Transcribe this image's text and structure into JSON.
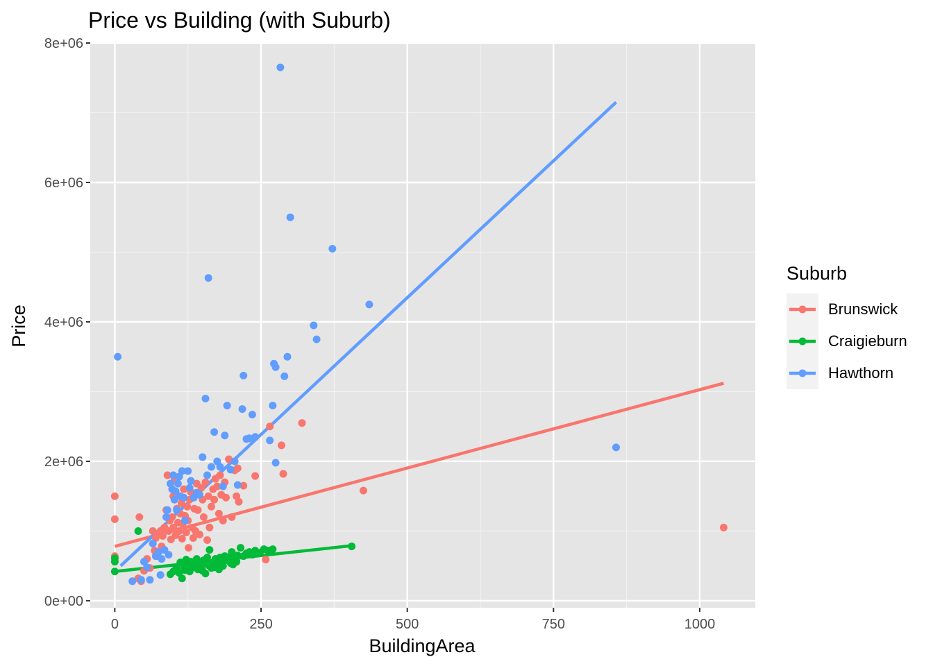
{
  "chart_data": {
    "type": "scatter",
    "title": "Price vs Building (with Suburb)",
    "xlabel": "BuildingArea",
    "ylabel": "Price",
    "xlim": [
      -42,
      1095
    ],
    "ylim": [
      -100000,
      8000000
    ],
    "x_ticks": [
      0,
      250,
      500,
      750,
      1000
    ],
    "x_tick_labels": [
      "0",
      "250",
      "500",
      "750",
      "1000"
    ],
    "y_ticks": [
      0,
      2000000,
      4000000,
      6000000,
      8000000
    ],
    "y_tick_labels": [
      "0e+00",
      "2e+06",
      "4e+06",
      "6e+06",
      "8e+06"
    ],
    "grid": true,
    "legend": {
      "title": "Suburb",
      "position": "right"
    },
    "background": "#e5e5e5",
    "series": [
      {
        "name": "Brunswick",
        "color": "#f8766d",
        "fit_line": [
          [
            0,
            780000
          ],
          [
            1041,
            3120000
          ]
        ],
        "points": [
          [
            0,
            1500000
          ],
          [
            0,
            1170000
          ],
          [
            0,
            640000
          ],
          [
            42,
            1200000
          ],
          [
            40,
            320000
          ],
          [
            45,
            280000
          ],
          [
            50,
            430000
          ],
          [
            55,
            600000
          ],
          [
            60,
            470000
          ],
          [
            65,
            1000000
          ],
          [
            68,
            720000
          ],
          [
            70,
            900000
          ],
          [
            72,
            640000
          ],
          [
            75,
            960000
          ],
          [
            78,
            1000000
          ],
          [
            80,
            780000
          ],
          [
            82,
            930000
          ],
          [
            85,
            1050000
          ],
          [
            88,
            1300000
          ],
          [
            90,
            1800000
          ],
          [
            92,
            1000000
          ],
          [
            94,
            1150000
          ],
          [
            96,
            880000
          ],
          [
            98,
            1200000
          ],
          [
            100,
            1050000
          ],
          [
            100,
            1500000
          ],
          [
            102,
            1750000
          ],
          [
            104,
            940000
          ],
          [
            106,
            1320000
          ],
          [
            108,
            1120000
          ],
          [
            110,
            1000000
          ],
          [
            112,
            1250000
          ],
          [
            114,
            1400000
          ],
          [
            115,
            890000
          ],
          [
            116,
            1100000
          ],
          [
            118,
            1600000
          ],
          [
            120,
            1220000
          ],
          [
            122,
            980000
          ],
          [
            124,
            1350000
          ],
          [
            125,
            1150000
          ],
          [
            126,
            760000
          ],
          [
            128,
            1450000
          ],
          [
            130,
            1560000
          ],
          [
            132,
            1050000
          ],
          [
            134,
            900000
          ],
          [
            136,
            1320000
          ],
          [
            138,
            1000000
          ],
          [
            140,
            1680000
          ],
          [
            142,
            1300000
          ],
          [
            145,
            950000
          ],
          [
            148,
            1620000
          ],
          [
            150,
            1450000
          ],
          [
            152,
            1200000
          ],
          [
            155,
            1700000
          ],
          [
            158,
            870000
          ],
          [
            160,
            1500000
          ],
          [
            162,
            1050000
          ],
          [
            165,
            1350000
          ],
          [
            168,
            1600000
          ],
          [
            170,
            1450000
          ],
          [
            172,
            1750000
          ],
          [
            175,
            1640000
          ],
          [
            178,
            1250000
          ],
          [
            180,
            1800000
          ],
          [
            182,
            1520000
          ],
          [
            185,
            1150000
          ],
          [
            188,
            1700000
          ],
          [
            190,
            1480000
          ],
          [
            195,
            2030000
          ],
          [
            200,
            1200000
          ],
          [
            205,
            1870000
          ],
          [
            208,
            1500000
          ],
          [
            210,
            1900000
          ],
          [
            212,
            1420000
          ],
          [
            220,
            1650000
          ],
          [
            240,
            1790000
          ],
          [
            258,
            590000
          ],
          [
            265,
            2500000
          ],
          [
            285,
            2230000
          ],
          [
            288,
            1820000
          ],
          [
            320,
            2550000
          ],
          [
            425,
            1580000
          ],
          [
            1041,
            1050000
          ]
        ]
      },
      {
        "name": "Craigieburn",
        "color": "#00ba38",
        "fit_line": [
          [
            0,
            420000
          ],
          [
            405,
            790000
          ]
        ],
        "points": [
          [
            0,
            420000
          ],
          [
            0,
            560000
          ],
          [
            0,
            610000
          ],
          [
            40,
            1000000
          ],
          [
            95,
            380000
          ],
          [
            100,
            420000
          ],
          [
            105,
            470000
          ],
          [
            110,
            400000
          ],
          [
            112,
            550000
          ],
          [
            115,
            320000
          ],
          [
            118,
            480000
          ],
          [
            120,
            440000
          ],
          [
            122,
            590000
          ],
          [
            125,
            510000
          ],
          [
            128,
            420000
          ],
          [
            130,
            560000
          ],
          [
            135,
            480000
          ],
          [
            140,
            600000
          ],
          [
            142,
            450000
          ],
          [
            145,
            540000
          ],
          [
            148,
            500000
          ],
          [
            150,
            430000
          ],
          [
            152,
            580000
          ],
          [
            155,
            390000
          ],
          [
            158,
            620000
          ],
          [
            160,
            510000
          ],
          [
            162,
            730000
          ],
          [
            165,
            470000
          ],
          [
            168,
            550000
          ],
          [
            170,
            480000
          ],
          [
            172,
            600000
          ],
          [
            175,
            520000
          ],
          [
            178,
            450000
          ],
          [
            180,
            620000
          ],
          [
            182,
            560000
          ],
          [
            185,
            500000
          ],
          [
            188,
            640000
          ],
          [
            190,
            580000
          ],
          [
            195,
            620000
          ],
          [
            198,
            540000
          ],
          [
            200,
            700000
          ],
          [
            202,
            520000
          ],
          [
            205,
            600000
          ],
          [
            208,
            560000
          ],
          [
            210,
            650000
          ],
          [
            215,
            760000
          ],
          [
            220,
            640000
          ],
          [
            225,
            680000
          ],
          [
            230,
            700000
          ],
          [
            235,
            660000
          ],
          [
            240,
            720000
          ],
          [
            248,
            690000
          ],
          [
            255,
            740000
          ],
          [
            262,
            720000
          ],
          [
            270,
            740000
          ],
          [
            405,
            780000
          ]
        ]
      },
      {
        "name": "Hawthorn",
        "color": "#619cff",
        "fit_line": [
          [
            10,
            500000
          ],
          [
            857,
            7150000
          ]
        ],
        "points": [
          [
            5,
            3500000
          ],
          [
            30,
            280000
          ],
          [
            45,
            300000
          ],
          [
            50,
            560000
          ],
          [
            55,
            480000
          ],
          [
            60,
            300000
          ],
          [
            65,
            820000
          ],
          [
            70,
            640000
          ],
          [
            75,
            700000
          ],
          [
            78,
            370000
          ],
          [
            80,
            600000
          ],
          [
            85,
            730000
          ],
          [
            88,
            1200000
          ],
          [
            90,
            1300000
          ],
          [
            92,
            660000
          ],
          [
            95,
            1680000
          ],
          [
            98,
            1600000
          ],
          [
            100,
            1800000
          ],
          [
            102,
            1450000
          ],
          [
            104,
            1570000
          ],
          [
            106,
            1300000
          ],
          [
            108,
            1680000
          ],
          [
            110,
            1780000
          ],
          [
            112,
            1500000
          ],
          [
            115,
            1860000
          ],
          [
            118,
            1480000
          ],
          [
            120,
            1150000
          ],
          [
            125,
            1860000
          ],
          [
            128,
            1620000
          ],
          [
            130,
            1720000
          ],
          [
            135,
            1480000
          ],
          [
            140,
            1550000
          ],
          [
            145,
            1520000
          ],
          [
            150,
            2060000
          ],
          [
            155,
            2900000
          ],
          [
            158,
            1800000
          ],
          [
            160,
            4630000
          ],
          [
            165,
            1920000
          ],
          [
            170,
            2420000
          ],
          [
            175,
            2000000
          ],
          [
            180,
            1920000
          ],
          [
            185,
            1640000
          ],
          [
            188,
            2370000
          ],
          [
            192,
            2800000
          ],
          [
            198,
            1880000
          ],
          [
            205,
            2000000
          ],
          [
            210,
            1660000
          ],
          [
            218,
            2750000
          ],
          [
            220,
            3230000
          ],
          [
            225,
            2320000
          ],
          [
            230,
            2330000
          ],
          [
            235,
            2670000
          ],
          [
            240,
            2350000
          ],
          [
            265,
            2300000
          ],
          [
            270,
            2800000
          ],
          [
            272,
            3400000
          ],
          [
            275,
            3350000
          ],
          [
            275,
            1980000
          ],
          [
            283,
            7650000
          ],
          [
            290,
            3220000
          ],
          [
            295,
            3500000
          ],
          [
            300,
            5500000
          ],
          [
            340,
            3950000
          ],
          [
            345,
            3750000
          ],
          [
            372,
            5050000
          ],
          [
            435,
            4250000
          ],
          [
            857,
            2200000
          ]
        ]
      }
    ]
  }
}
